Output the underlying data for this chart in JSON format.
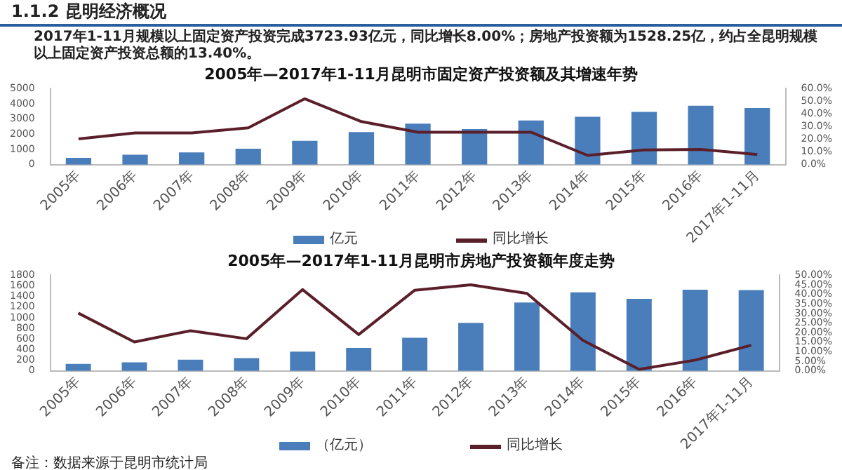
{
  "chart_data": [
    {
      "type": "bar",
      "title": "2005年—2017年1-11月昆明市固定资产投资额及其增速年势",
      "annotations": [
        "1.1.2 昆明经济概况",
        "2017年1-11月规模以上固定资产投资完成3723.93亿元，同比增长8.00%；房地产投资额为1528.25亿，约占全昆明规模以上固定资产投资总额的13.40%。"
      ],
      "categories": [
        "2005年",
        "2006年",
        "2007年",
        "2008年",
        "2009年",
        "2010年",
        "2011年",
        "2012年",
        "2013年",
        "2014年",
        "2015年",
        "2016年",
        "2017年1-11月"
      ],
      "series": [
        {
          "name": "亿元",
          "type": "bar",
          "color": "#4a7ebb",
          "values": [
            450,
            650,
            800,
            1050,
            1570,
            2140,
            2700,
            2340,
            2900,
            3150,
            3470,
            3870,
            3720
          ]
        },
        {
          "name": "同比增长",
          "type": "line",
          "axis": "y2",
          "color": "#5a1f2a",
          "values": [
            20.3,
            25,
            25,
            29,
            52,
            34,
            25.6,
            25.6,
            25.6,
            7.3,
            11.6,
            12,
            8
          ]
        }
      ],
      "ylim": [
        0,
        5000
      ],
      "yticks": [
        0,
        1000,
        2000,
        3000,
        4000,
        5000
      ],
      "y2lim": [
        0,
        60
      ],
      "y2ticks": [
        {
          "value": 0,
          "label": "0.0%"
        },
        {
          "value": 10,
          "label": "10.0%"
        },
        {
          "value": 20,
          "label": "20.0%"
        },
        {
          "value": 30,
          "label": "30.0%"
        },
        {
          "value": 40,
          "label": "40.0%"
        },
        {
          "value": 50,
          "label": "50.0%"
        },
        {
          "value": 60,
          "label": "60.0%"
        }
      ],
      "legend": "bottom",
      "marker": "none",
      "line_style": "solid"
    },
    {
      "type": "bar",
      "title": "2005年—2017年1-11月昆明市房地产投资额年度走势",
      "annotations": [
        "备注：数据来源于昆明市统计局"
      ],
      "categories": [
        "2005年",
        "2006年",
        "2007年",
        "2008年",
        "2009年",
        "2010年",
        "2011年",
        "2012年",
        "2013年",
        "2014年",
        "2015年",
        "2016年",
        "2017年1-11月"
      ],
      "series": [
        {
          "name": "（亿元）",
          "type": "bar",
          "color": "#4a7ebb",
          "values": [
            131,
            161,
            211,
            241,
            362,
            432,
            623,
            905,
            1287,
            1478,
            1357,
            1528,
            1520
          ]
        },
        {
          "name": "同比增长",
          "type": "line",
          "axis": "y2",
          "color": "#5a1f2a",
          "values": [
            30.2,
            15.1,
            21,
            16.8,
            42.5,
            19,
            42.2,
            45,
            40.5,
            15.9,
            0.8,
            5.6,
            13.4
          ]
        }
      ],
      "ylim": [
        0,
        1800
      ],
      "yticks": [
        0,
        200,
        400,
        600,
        800,
        1000,
        1200,
        1400,
        1600,
        1800
      ],
      "y2lim": [
        0,
        50
      ],
      "y2ticks": [
        {
          "value": 0,
          "label": "0.00%"
        },
        {
          "value": 5,
          "label": "5.00%"
        },
        {
          "value": 10,
          "label": "10.00%"
        },
        {
          "value": 15,
          "label": "15.00%"
        },
        {
          "value": 20,
          "label": "20.00%"
        },
        {
          "value": 25,
          "label": "25.00%"
        },
        {
          "value": 30,
          "label": "30.00%"
        },
        {
          "value": 35,
          "label": "35.00%"
        },
        {
          "value": 40,
          "label": "40.00%"
        },
        {
          "value": 45,
          "label": "45.00%"
        },
        {
          "value": 50,
          "label": "50.00%"
        }
      ],
      "legend": "bottom",
      "marker": "none",
      "line_style": "solid"
    }
  ]
}
